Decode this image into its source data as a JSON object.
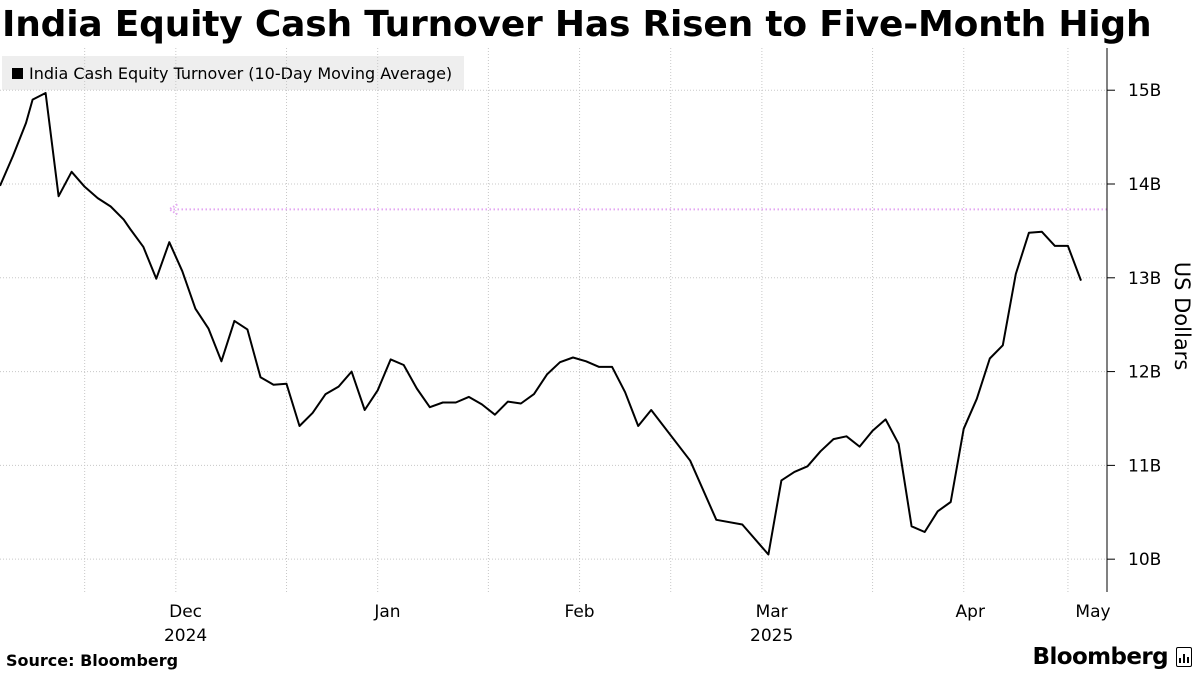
{
  "chart_data": {
    "type": "line",
    "title": "India Equity Cash Turnover Has Risen to Five-Month High",
    "legend": {
      "entries": [
        "India Cash Equity Turnover (10-Day Moving Average)"
      ],
      "placement": "top-left"
    },
    "ylabel": "US Dollars",
    "y_axis_side": "right",
    "ylim": [
      9.65,
      15.45
    ],
    "y_ticks": [
      {
        "value": 10,
        "label": "10B"
      },
      {
        "value": 11,
        "label": "11B"
      },
      {
        "value": 12,
        "label": "12B"
      },
      {
        "value": 13,
        "label": "13B"
      },
      {
        "value": 14,
        "label": "14B"
      },
      {
        "value": 15,
        "label": "15B"
      }
    ],
    "xlim": [
      "2024-11-18",
      "2025-05-07"
    ],
    "x_ticks": [
      {
        "date": "2024-12-01",
        "label": "Dec",
        "year_label": "2024"
      },
      {
        "date": "2025-01-01",
        "label": "Jan",
        "year_label": ""
      },
      {
        "date": "2025-02-01",
        "label": "Feb",
        "year_label": ""
      },
      {
        "date": "2025-03-01",
        "label": "Mar",
        "year_label": "2025"
      },
      {
        "date": "2025-04-01",
        "label": "Apr",
        "year_label": ""
      },
      {
        "date": "2025-05-01",
        "label": "May",
        "year_label": ""
      }
    ],
    "x_grid": [
      "2024-12-15",
      "2025-01-15",
      "2025-02-15",
      "2025-03-15",
      "2025-04-15"
    ],
    "grid": true,
    "series": [
      {
        "name": "India Cash Equity Turnover (10-Day Moving Average)",
        "color": "#000000",
        "points": [
          [
            "2024-11-18",
            13.98
          ],
          [
            "2024-11-20",
            14.3
          ],
          [
            "2024-11-22",
            14.65
          ],
          [
            "2024-11-23",
            14.9
          ],
          [
            "2024-11-25",
            14.97
          ],
          [
            "2024-11-27",
            13.87
          ],
          [
            "2024-11-29",
            14.13
          ],
          [
            "2024-12-01",
            13.97
          ],
          [
            "2024-12-03",
            13.85
          ],
          [
            "2024-12-05",
            13.76
          ],
          [
            "2024-12-07",
            13.62
          ],
          [
            "2024-12-08",
            13.52
          ],
          [
            "2024-12-10",
            13.33
          ],
          [
            "2024-12-12",
            12.99
          ],
          [
            "2024-12-14",
            13.38
          ],
          [
            "2024-12-16",
            13.07
          ],
          [
            "2024-12-18",
            12.67
          ],
          [
            "2024-12-20",
            12.46
          ],
          [
            "2024-12-22",
            12.11
          ],
          [
            "2024-12-24",
            12.54
          ],
          [
            "2024-12-26",
            12.45
          ],
          [
            "2024-12-28",
            11.94
          ],
          [
            "2024-12-30",
            11.86
          ],
          [
            "2025-01-01",
            11.87
          ],
          [
            "2025-01-03",
            11.42
          ],
          [
            "2025-01-05",
            11.56
          ],
          [
            "2025-01-07",
            11.76
          ],
          [
            "2025-01-09",
            11.84
          ],
          [
            "2025-01-11",
            12.0
          ],
          [
            "2025-01-13",
            11.59
          ],
          [
            "2025-01-15",
            11.8
          ],
          [
            "2025-01-17",
            12.13
          ],
          [
            "2025-01-19",
            12.07
          ],
          [
            "2025-01-21",
            11.82
          ],
          [
            "2025-01-23",
            11.62
          ],
          [
            "2025-01-25",
            11.67
          ],
          [
            "2025-01-27",
            11.67
          ],
          [
            "2025-01-29",
            11.73
          ],
          [
            "2025-01-31",
            11.65
          ],
          [
            "2025-02-02",
            11.54
          ],
          [
            "2025-02-04",
            11.68
          ],
          [
            "2025-02-06",
            11.66
          ],
          [
            "2025-02-08",
            11.76
          ],
          [
            "2025-02-10",
            11.97
          ],
          [
            "2025-02-12",
            12.1
          ],
          [
            "2025-02-14",
            12.15
          ],
          [
            "2025-02-16",
            12.11
          ],
          [
            "2025-02-18",
            12.05
          ],
          [
            "2025-02-20",
            12.05
          ],
          [
            "2025-02-22",
            11.78
          ],
          [
            "2025-02-24",
            11.42
          ],
          [
            "2025-02-26",
            11.59
          ],
          [
            "2025-03-04",
            11.05
          ],
          [
            "2025-03-08",
            10.42
          ],
          [
            "2025-03-12",
            10.37
          ],
          [
            "2025-03-16",
            10.05
          ],
          [
            "2025-03-18",
            10.84
          ],
          [
            "2025-03-20",
            10.93
          ],
          [
            "2025-03-22",
            10.99
          ],
          [
            "2025-03-24",
            11.15
          ],
          [
            "2025-03-26",
            11.28
          ],
          [
            "2025-03-28",
            11.31
          ],
          [
            "2025-03-30",
            11.2
          ],
          [
            "2025-04-01",
            11.37
          ],
          [
            "2025-04-03",
            11.49
          ],
          [
            "2025-04-05",
            11.23
          ],
          [
            "2025-04-07",
            10.35
          ],
          [
            "2025-04-09",
            10.29
          ],
          [
            "2025-04-11",
            10.51
          ],
          [
            "2025-04-13",
            10.61
          ],
          [
            "2025-04-15",
            11.39
          ],
          [
            "2025-04-17",
            11.71
          ],
          [
            "2025-04-19",
            12.14
          ],
          [
            "2025-04-21",
            12.28
          ],
          [
            "2025-04-23",
            13.04
          ],
          [
            "2025-04-25",
            13.48
          ],
          [
            "2025-04-27",
            13.49
          ],
          [
            "2025-04-29",
            13.34
          ],
          [
            "2025-05-01",
            13.34
          ],
          [
            "2025-05-03",
            12.97
          ]
        ]
      }
    ],
    "annotation": {
      "type": "dotted-arrow",
      "color": "#e3a6f2",
      "value": 13.73,
      "from_date": "2025-05-07",
      "to_date": "2024-12-14"
    }
  },
  "footer": {
    "source": "Source: Bloomberg",
    "brand": "Bloomberg"
  }
}
